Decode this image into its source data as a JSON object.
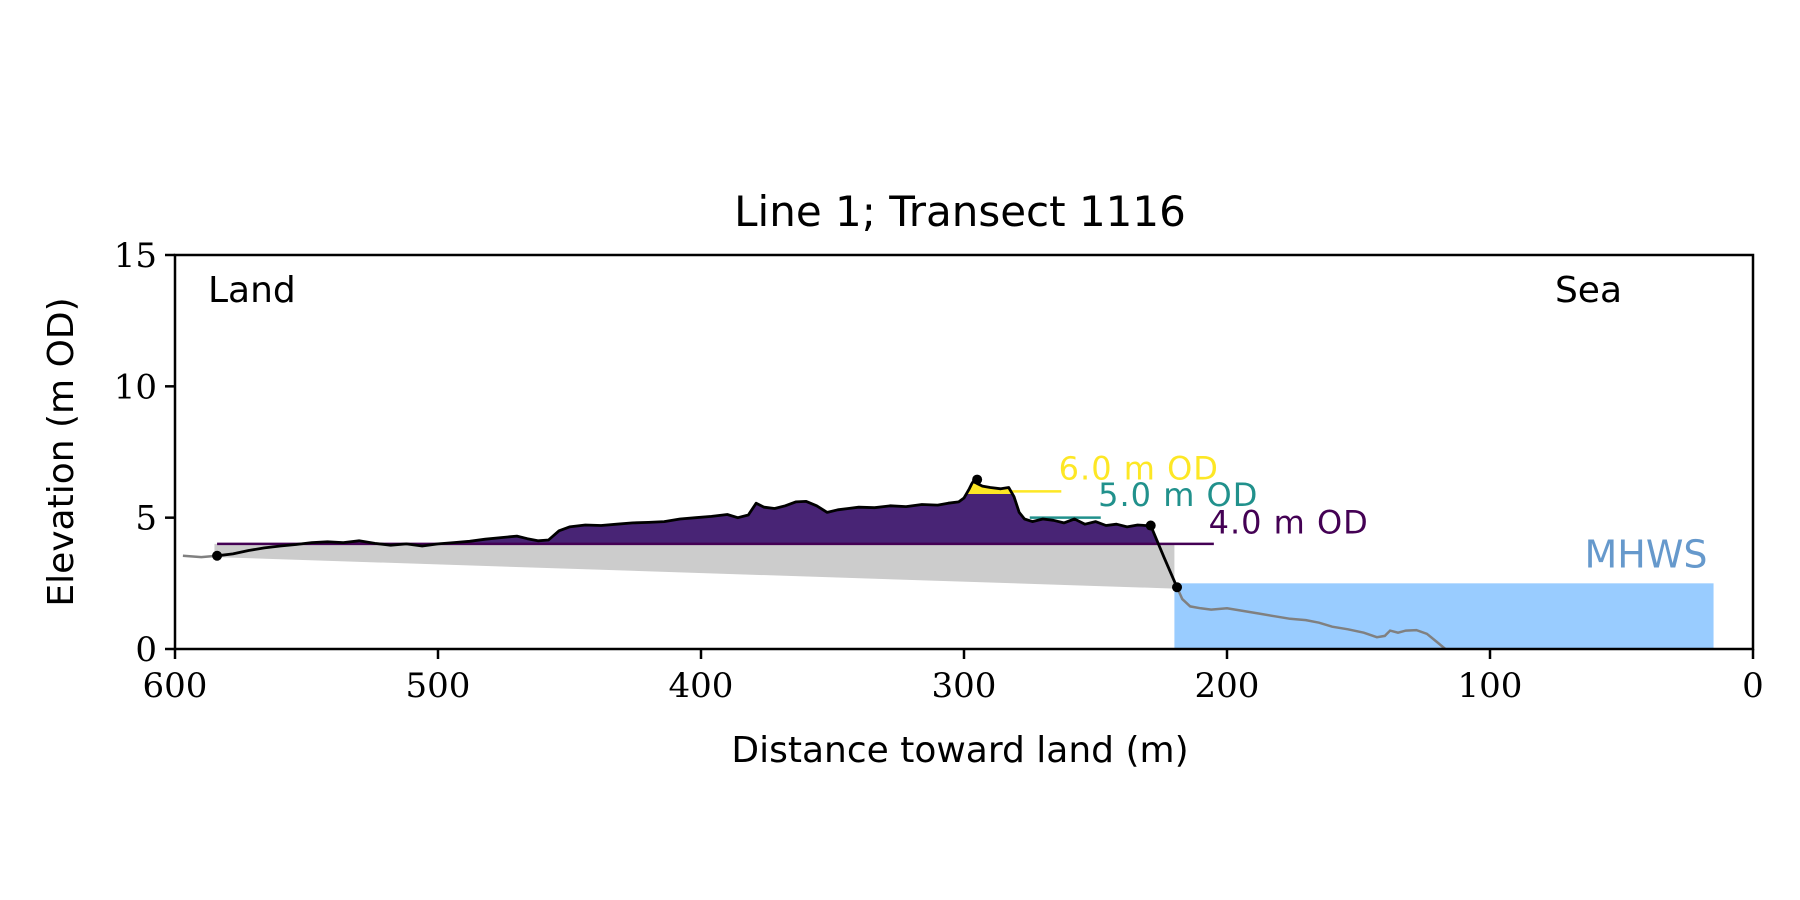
{
  "chart_data": {
    "type": "area",
    "title": "Line 1; Transect 1116",
    "xlabel": "Distance toward land (m)",
    "ylabel": "Elevation (m OD)",
    "xlim": [
      600,
      0
    ],
    "ylim": [
      0,
      15
    ],
    "x_inverted": true,
    "xticks": [
      600,
      500,
      400,
      300,
      200,
      100,
      0
    ],
    "yticks": [
      0,
      5,
      10,
      15
    ],
    "grid": false,
    "annotations": {
      "left": "Land",
      "right": "Sea"
    },
    "colors": {
      "profile": "#000000",
      "offshore_profile": "#808080",
      "base_fill": "#cccccc",
      "level_4": "#440154",
      "level_4_fill": "#482475",
      "level_5": "#21918c",
      "level_6": "#fde725",
      "mhws": "#99ccff",
      "mhws_label": "#6699cc"
    },
    "levels": [
      {
        "label": "4.0 m OD",
        "value": 4.0,
        "color": "#440154",
        "label_x": 207,
        "label_y": 4.4,
        "line_x": [
          235,
          205
        ]
      },
      {
        "label": "5.0 m OD",
        "value": 5.0,
        "color": "#21918c",
        "label_x": 249,
        "label_y": 5.45,
        "line_x": [
          275,
          248
        ]
      },
      {
        "label": "6.0 m OD",
        "value": 6.0,
        "color": "#fde725",
        "label_x": 264,
        "label_y": 6.45,
        "line_x": [
          290,
          263
        ]
      }
    ],
    "mhws": {
      "label": "MHWS",
      "value": 2.5,
      "x_range": [
        220,
        15
      ]
    },
    "baseline": {
      "x": [
        585,
        220
      ],
      "y": [
        3.5,
        2.3
      ]
    },
    "key_points": [
      {
        "x": 584,
        "y": 3.55
      },
      {
        "x": 295,
        "y": 6.45
      },
      {
        "x": 229,
        "y": 4.7
      },
      {
        "x": 219,
        "y": 2.35
      }
    ],
    "profile": {
      "x": [
        584,
        578,
        572,
        566,
        560,
        554,
        548,
        542,
        536,
        530,
        524,
        518,
        512,
        506,
        500,
        494,
        488,
        482,
        476,
        470,
        466,
        462,
        458,
        454,
        450,
        444,
        438,
        432,
        426,
        420,
        414,
        408,
        402,
        396,
        390,
        386,
        382,
        379,
        376,
        372,
        368,
        364,
        360,
        356,
        352,
        348,
        344,
        340,
        334,
        328,
        322,
        316,
        310,
        306,
        302,
        300,
        298,
        297,
        296,
        295,
        293,
        290,
        286,
        283,
        281,
        279,
        277,
        274,
        270,
        266,
        262,
        258,
        254,
        250,
        246,
        242,
        238,
        234,
        231,
        229,
        224,
        219
      ],
      "y": [
        3.55,
        3.62,
        3.75,
        3.85,
        3.92,
        3.98,
        4.05,
        4.08,
        4.05,
        4.12,
        4.02,
        3.95,
        4.0,
        3.92,
        4.0,
        4.05,
        4.1,
        4.18,
        4.24,
        4.3,
        4.2,
        4.12,
        4.15,
        4.5,
        4.65,
        4.72,
        4.7,
        4.75,
        4.8,
        4.82,
        4.85,
        4.95,
        5.0,
        5.05,
        5.12,
        5.0,
        5.1,
        5.55,
        5.4,
        5.35,
        5.45,
        5.6,
        5.62,
        5.45,
        5.2,
        5.3,
        5.35,
        5.4,
        5.38,
        5.45,
        5.42,
        5.5,
        5.48,
        5.55,
        5.6,
        5.75,
        6.1,
        6.3,
        6.45,
        6.3,
        6.2,
        6.15,
        6.1,
        6.15,
        5.8,
        5.2,
        4.95,
        4.85,
        4.95,
        4.9,
        4.8,
        4.95,
        4.75,
        4.85,
        4.7,
        4.75,
        4.65,
        4.72,
        4.7,
        4.7,
        3.5,
        2.35
      ]
    },
    "offshore_profile": {
      "x": [
        219,
        217,
        214,
        210,
        206,
        200,
        194,
        188,
        182,
        176,
        170,
        165,
        160,
        154,
        148,
        143,
        140,
        138,
        135,
        132,
        128,
        124,
        120,
        117
      ],
      "y": [
        2.35,
        1.9,
        1.62,
        1.55,
        1.5,
        1.55,
        1.45,
        1.35,
        1.25,
        1.15,
        1.1,
        1.0,
        0.85,
        0.75,
        0.62,
        0.45,
        0.5,
        0.7,
        0.62,
        0.7,
        0.72,
        0.58,
        0.25,
        0.0
      ]
    },
    "landward_tail": {
      "x": [
        597,
        590,
        584
      ],
      "y": [
        3.55,
        3.5,
        3.55
      ]
    }
  }
}
